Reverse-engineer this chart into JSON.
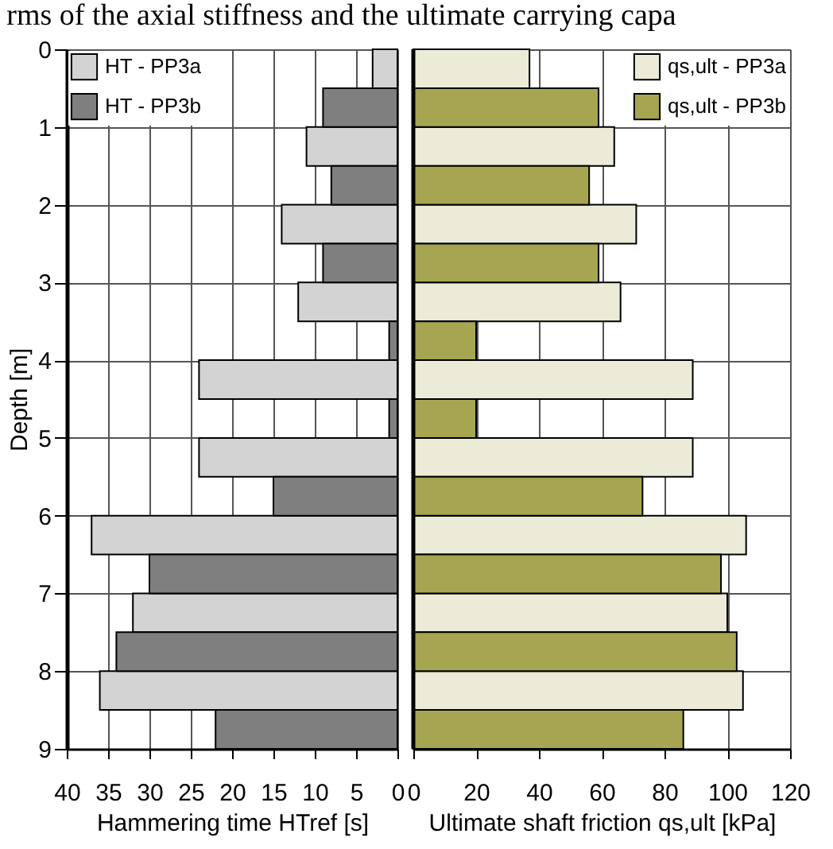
{
  "chart_data": [
    {
      "type": "bar",
      "orientation": "horizontal",
      "annotations": [
        "rms of the axial stiffness and the ultimate carrying capa"
      ],
      "xlabel": "Hammering time HTref [s]",
      "ylabel": "Depth [m]",
      "xlim": [
        40,
        0
      ],
      "xticks": [
        40,
        35,
        30,
        25,
        20,
        15,
        10,
        5,
        0
      ],
      "ylim": [
        9,
        0
      ],
      "yticks": [
        0,
        1,
        2,
        3,
        4,
        5,
        6,
        7,
        8,
        9
      ],
      "grid": true,
      "legend": "top left",
      "series": [
        {
          "name": "HT - PP3a",
          "color": "#d3d3d3",
          "x": [
            0.25,
            1.25,
            2.25,
            3.25,
            4.25,
            5.25,
            6.25,
            7.25,
            8.25
          ],
          "values": [
            3,
            11,
            14,
            12,
            24,
            24,
            37,
            32,
            36
          ]
        },
        {
          "name": "HT - PP3b",
          "color": "#7f7f7f",
          "x": [
            0.75,
            1.75,
            2.75,
            3.75,
            4.75,
            5.75,
            6.75,
            7.75,
            8.75
          ],
          "values": [
            9,
            8,
            9,
            1,
            1,
            15,
            30,
            34,
            22
          ]
        }
      ]
    },
    {
      "type": "bar",
      "orientation": "horizontal",
      "xlabel": "Ultimate shaft friction qs,ult [kPa]",
      "xlim": [
        0,
        120
      ],
      "xticks": [
        0,
        20,
        40,
        60,
        80,
        100,
        120
      ],
      "ylim": [
        9,
        0
      ],
      "yticks": [
        0,
        1,
        2,
        3,
        4,
        5,
        6,
        7,
        8,
        9
      ],
      "tick_labels": "x",
      "grid": true,
      "legend": "top right",
      "series": [
        {
          "name": "qs,ult - PP3a",
          "color": "#ebebd7",
          "x": [
            0.25,
            1.25,
            2.25,
            3.25,
            4.25,
            5.25,
            6.25,
            7.25,
            8.25
          ],
          "values": [
            37,
            64,
            71,
            66,
            89,
            89,
            106,
            100,
            105
          ]
        },
        {
          "name": "qs,ult - PP3b",
          "color": "#a6a652",
          "x": [
            0.75,
            1.75,
            2.75,
            3.75,
            4.75,
            5.75,
            6.75,
            7.75,
            8.75
          ],
          "values": [
            59,
            56,
            59,
            20,
            20,
            73,
            98,
            103,
            86
          ]
        }
      ]
    }
  ]
}
